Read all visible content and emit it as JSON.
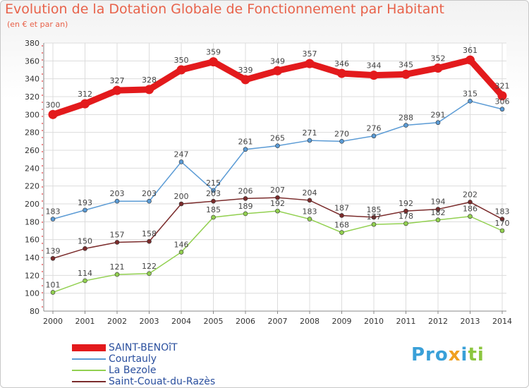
{
  "header": {
    "title": "Evolution de la Dotation Globale de Fonctionnement par Habitant",
    "subtitle": "(en € et par an)"
  },
  "brand": {
    "text": "Proxiti"
  },
  "chart_data": {
    "type": "line",
    "title": "Evolution de la Dotation Globale de Fonctionnement par Habitant",
    "subtitle": "(en € et par an)",
    "xlabel": "",
    "ylabel": "",
    "ylim": [
      80,
      380
    ],
    "yticks": [
      80,
      100,
      120,
      140,
      160,
      180,
      200,
      220,
      240,
      260,
      280,
      300,
      320,
      340,
      360,
      380
    ],
    "grid": true,
    "legend_position": "bottom-left",
    "categories": [
      "2000",
      "2001",
      "2002",
      "2003",
      "2004",
      "2005",
      "2006",
      "2007",
      "2008",
      "2009",
      "2010",
      "2011",
      "2012",
      "2013",
      "2014"
    ],
    "series": [
      {
        "name": "SAINT-BENOîT",
        "color": "#e31a1c",
        "emphasis": true,
        "values": [
          300,
          312,
          327,
          328,
          350,
          359,
          339,
          349,
          357,
          346,
          344,
          345,
          352,
          361,
          321
        ]
      },
      {
        "name": "Courtauly",
        "color": "#5b9bd5",
        "values": [
          183,
          193,
          203,
          203,
          247,
          215,
          261,
          265,
          271,
          270,
          276,
          288,
          291,
          315,
          306
        ]
      },
      {
        "name": "La Bezole",
        "color": "#92d050",
        "values": [
          101,
          114,
          121,
          122,
          146,
          185,
          189,
          192,
          183,
          168,
          177,
          178,
          182,
          186,
          170
        ]
      },
      {
        "name": "Saint-Couat-du-Razès",
        "color": "#7b2c2c",
        "values": [
          139,
          150,
          157,
          158,
          200,
          203,
          206,
          207,
          204,
          187,
          185,
          192,
          194,
          202,
          183
        ]
      }
    ]
  }
}
